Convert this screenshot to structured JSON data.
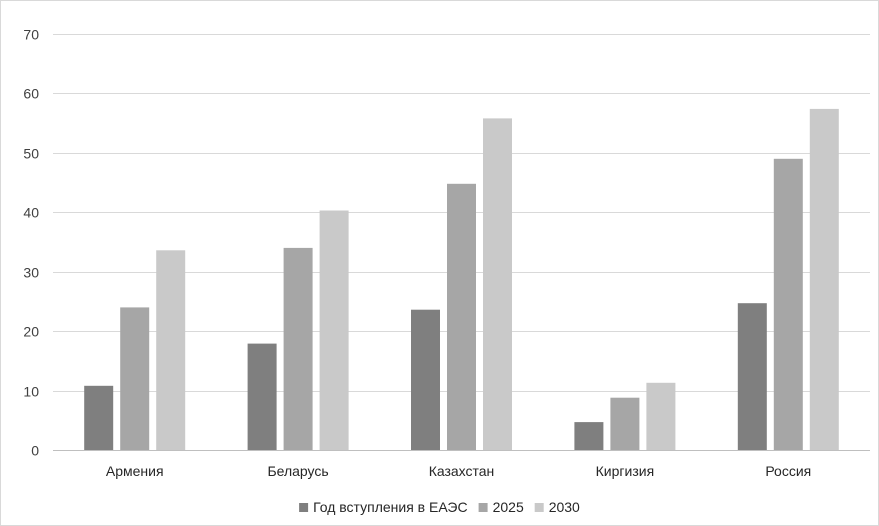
{
  "chart_data": {
    "type": "bar",
    "categories": [
      "Армения",
      "Беларусь",
      "Казахстан",
      "Киргизия",
      "Россия"
    ],
    "series": [
      {
        "name": "Год вступления в ЕАЭС",
        "color": "#7f7f7f",
        "values": [
          10.8,
          17.9,
          23.6,
          4.7,
          24.7
        ]
      },
      {
        "name": "2025",
        "color": "#a6a6a6",
        "values": [
          24.0,
          34.0,
          44.8,
          8.8,
          49.0
        ]
      },
      {
        "name": "2030",
        "color": "#c9c9c9",
        "values": [
          33.6,
          40.3,
          55.8,
          11.3,
          57.4
        ]
      }
    ],
    "title": "",
    "xlabel": "",
    "ylabel": "",
    "ylim": [
      0,
      70
    ],
    "yticks": [
      0,
      10,
      20,
      30,
      40,
      50,
      60,
      70
    ],
    "grid": true,
    "legend_position": "bottom"
  }
}
